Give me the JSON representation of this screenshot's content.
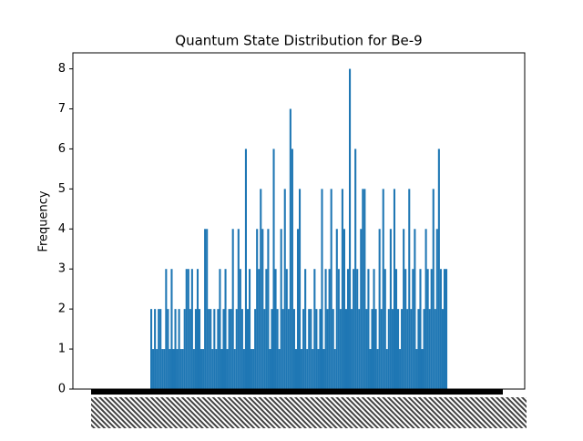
{
  "chart_data": {
    "type": "bar",
    "title": "Quantum State Distribution for Be-9",
    "y_label": "Frequency",
    "color": "#1f77b4",
    "ylim": [
      0,
      8.4
    ],
    "yticks": [
      0,
      1,
      2,
      3,
      4,
      5,
      6,
      7,
      8
    ],
    "categories": [
      null,
      null,
      null,
      null,
      null,
      null,
      null,
      null,
      null,
      null,
      null,
      null,
      null,
      null,
      null,
      null,
      null,
      null,
      null,
      null,
      null,
      null,
      null,
      null,
      null,
      null,
      null,
      null,
      null,
      null,
      null,
      null,
      null,
      null,
      null,
      null,
      null,
      null,
      null,
      null,
      null,
      null,
      null,
      null,
      null,
      null,
      null,
      null,
      null,
      null,
      null,
      null,
      null,
      null,
      null,
      null,
      null,
      null,
      null,
      null,
      null,
      null,
      null,
      null,
      null,
      null,
      null,
      null,
      null,
      null,
      null,
      null,
      null,
      null,
      null,
      null,
      null,
      null,
      null,
      null,
      null,
      null,
      null,
      null,
      null,
      null,
      null,
      null,
      null,
      null,
      null,
      null,
      null,
      null,
      null,
      null,
      null,
      null,
      null,
      null,
      null,
      null,
      null,
      null,
      null,
      null,
      null,
      null,
      null,
      null,
      null,
      null,
      null,
      null,
      null,
      null,
      null,
      null,
      null,
      null,
      null,
      null,
      null,
      null,
      null,
      null,
      null,
      null,
      null,
      null,
      null,
      null,
      null,
      null,
      null,
      null,
      null,
      null,
      null,
      null,
      null,
      null,
      null,
      null,
      null,
      null,
      null,
      null,
      null,
      null,
      null,
      null,
      null,
      null,
      null,
      null,
      null,
      null,
      null,
      null
    ],
    "values": [
      2,
      1,
      2,
      1,
      2,
      2,
      1,
      1,
      3,
      2,
      1,
      3,
      1,
      2,
      1,
      2,
      1,
      1,
      2,
      3,
      3,
      2,
      3,
      1,
      2,
      3,
      2,
      1,
      1,
      4,
      4,
      2,
      2,
      1,
      2,
      1,
      2,
      3,
      1,
      2,
      3,
      1,
      2,
      2,
      4,
      1,
      2,
      4,
      3,
      2,
      1,
      6,
      2,
      3,
      1,
      1,
      2,
      4,
      3,
      5,
      4,
      2,
      3,
      4,
      1,
      2,
      6,
      3,
      2,
      1,
      4,
      2,
      5,
      3,
      2,
      7,
      6,
      2,
      1,
      4,
      5,
      1,
      2,
      3,
      1,
      2,
      2,
      1,
      3,
      2,
      1,
      2,
      5,
      1,
      3,
      2,
      3,
      5,
      2,
      1,
      4,
      3,
      2,
      5,
      4,
      2,
      3,
      8,
      2,
      3,
      6,
      3,
      2,
      4,
      5,
      5,
      2,
      3,
      1,
      2,
      3,
      2,
      1,
      4,
      2,
      5,
      3,
      1,
      2,
      4,
      2,
      5,
      3,
      2,
      1,
      2,
      4,
      3,
      2,
      5,
      2,
      3,
      4,
      1,
      2,
      3,
      1,
      2,
      4,
      3,
      2,
      3,
      5,
      2,
      4,
      6,
      3,
      2,
      3,
      3
    ]
  }
}
